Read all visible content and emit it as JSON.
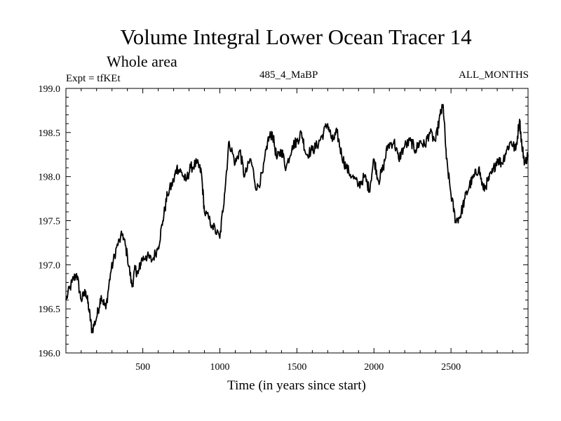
{
  "chart_data": {
    "type": "line",
    "title": "Volume Integral Lower Ocean Tracer 14",
    "subtitle": "Whole area",
    "experiment": "Expt = tfKEt",
    "run_label": "485_4_MaBP",
    "period_label": "ALL_MONTHS",
    "xlabel": "Time (in years since start)",
    "ylabel": "",
    "xlim": [
      1,
      3000
    ],
    "ylim": [
      196.0,
      199.0
    ],
    "x_ticks": [
      500,
      1000,
      1500,
      2000,
      2500
    ],
    "x_tick_labels": [
      "500",
      "1000",
      "1500",
      "2000",
      "2500"
    ],
    "y_ticks": [
      196.0,
      196.5,
      197.0,
      197.5,
      198.0,
      198.5,
      199.0
    ],
    "y_tick_labels": [
      "196.0",
      "196.5",
      "197.0",
      "197.5",
      "198.0",
      "198.5",
      "199.0"
    ],
    "grid": false,
    "line_color": "#000000",
    "series": [
      {
        "x": [
          1,
          40,
          70,
          100,
          130,
          150,
          170,
          200,
          230,
          260,
          290,
          330,
          370,
          400,
          430,
          450,
          470,
          490,
          520,
          560,
          600,
          630,
          660,
          700,
          720,
          750,
          780,
          810,
          850,
          880,
          900,
          950,
          1000,
          1030,
          1060,
          1100,
          1130,
          1160,
          1200,
          1240,
          1280,
          1310,
          1340,
          1370,
          1400,
          1430,
          1470,
          1500,
          1530,
          1560,
          1600,
          1630,
          1660,
          1700,
          1730,
          1760,
          1790,
          1820,
          1860,
          1900,
          1940,
          1970,
          2000,
          2030,
          2060,
          2090,
          2130,
          2160,
          2200,
          2240,
          2270,
          2300,
          2330,
          2360,
          2400,
          2430,
          2450,
          2470,
          2500,
          2530,
          2560,
          2590,
          2620,
          2650,
          2680,
          2710,
          2740,
          2770,
          2800,
          2830,
          2860,
          2890,
          2920,
          2945,
          2960,
          2980,
          3000
        ],
        "values": [
          196.6,
          196.8,
          196.9,
          196.6,
          196.7,
          196.5,
          196.25,
          196.4,
          196.65,
          196.5,
          196.9,
          197.2,
          197.35,
          197.1,
          196.75,
          196.95,
          196.9,
          197.05,
          197.1,
          197.05,
          197.2,
          197.5,
          197.8,
          197.95,
          198.1,
          198.05,
          197.95,
          198.1,
          198.15,
          198.05,
          197.6,
          197.45,
          197.3,
          197.8,
          198.4,
          198.15,
          198.3,
          198.0,
          198.2,
          197.85,
          198.05,
          198.4,
          198.5,
          198.2,
          198.3,
          198.1,
          198.35,
          198.4,
          198.5,
          198.25,
          198.3,
          198.35,
          198.45,
          198.6,
          198.4,
          198.5,
          198.25,
          198.1,
          198.0,
          197.9,
          198.0,
          197.85,
          198.2,
          197.95,
          198.1,
          198.35,
          198.4,
          198.2,
          198.35,
          198.4,
          198.3,
          198.4,
          198.35,
          198.5,
          198.4,
          198.7,
          198.8,
          198.2,
          197.8,
          197.5,
          197.55,
          197.75,
          197.9,
          198.0,
          198.1,
          197.85,
          197.95,
          198.05,
          198.2,
          198.15,
          198.3,
          198.4,
          198.3,
          198.65,
          198.35,
          198.15,
          198.25
        ]
      }
    ]
  }
}
